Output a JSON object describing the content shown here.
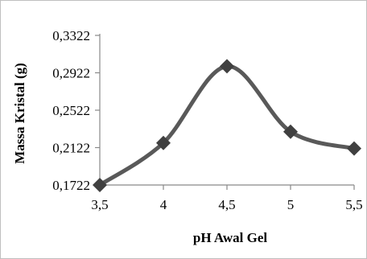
{
  "chart_data": {
    "type": "line",
    "smooth": true,
    "x": [
      3.5,
      4,
      4.5,
      5,
      5.5
    ],
    "x_tick_labels": [
      "3,5",
      "4",
      "4,5",
      "5",
      "5,5"
    ],
    "series": [
      {
        "values": [
          0.1722,
          0.2172,
          0.2992,
          0.2292,
          0.2112
        ]
      }
    ],
    "y_ticks": [
      0.1722,
      0.2122,
      0.2522,
      0.2922,
      0.3322
    ],
    "y_tick_labels": [
      "0,1722",
      "0,2122",
      "0,2522",
      "0,2922",
      "0,3322"
    ],
    "xlabel": "pH Awal Gel",
    "ylabel": "Massa Kristal (g)",
    "xlim": [
      3.5,
      5.5
    ],
    "ylim": [
      0.1722,
      0.3322
    ],
    "grid": false,
    "legend": "none",
    "colors": {
      "line": "#595959",
      "marker": "#404040",
      "axis": "#898989"
    }
  }
}
